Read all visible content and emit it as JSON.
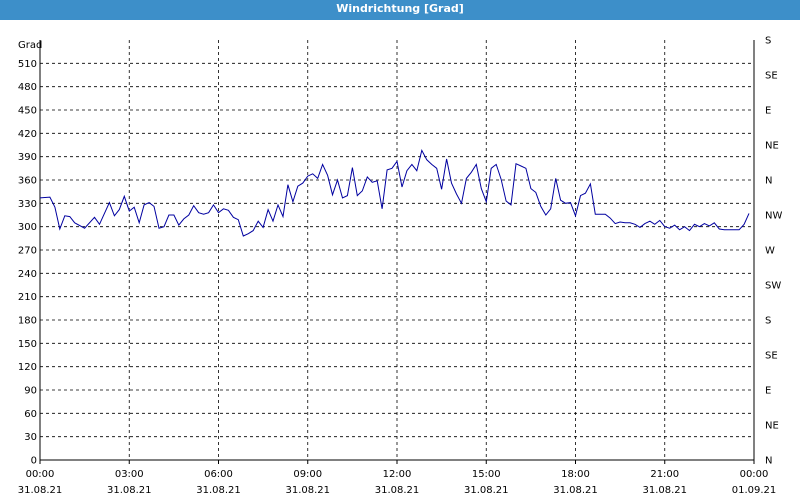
{
  "window": {
    "title": "Windrichtung [Grad]"
  },
  "chart_data": {
    "type": "line",
    "ylabel": "Grad",
    "ylim": [
      0,
      540
    ],
    "xlim": [
      "2021-08-31 00:00",
      "2021-09-01 00:00"
    ],
    "grid": true,
    "left_ticks": [
      "0",
      "30",
      "60",
      "90",
      "120",
      "150",
      "180",
      "210",
      "240",
      "270",
      "300",
      "330",
      "360",
      "390",
      "420",
      "450",
      "480",
      "510"
    ],
    "right_ticks": [
      "N",
      "NE",
      "E",
      "SE",
      "S",
      "SW",
      "W",
      "NW",
      "N",
      "NE",
      "E",
      "SE",
      "S"
    ],
    "x_ticks": [
      {
        "time": "00:00",
        "date": "31.08.21"
      },
      {
        "time": "03:00",
        "date": "31.08.21"
      },
      {
        "time": "06:00",
        "date": "31.08.21"
      },
      {
        "time": "09:00",
        "date": "31.08.21"
      },
      {
        "time": "12:00",
        "date": "31.08.21"
      },
      {
        "time": "15:00",
        "date": "31.08.21"
      },
      {
        "time": "18:00",
        "date": "31.08.21"
      },
      {
        "time": "21:00",
        "date": "31.08.21"
      },
      {
        "time": "00:00",
        "date": "01.09.21"
      }
    ],
    "series": [
      {
        "color": "#0000a0",
        "points": [
          [
            "00:00",
            337
          ],
          [
            "00:20",
            338
          ],
          [
            "00:30",
            325
          ],
          [
            "00:40",
            297
          ],
          [
            "00:50",
            314
          ],
          [
            "01:00",
            313
          ],
          [
            "01:10",
            305
          ],
          [
            "01:30",
            298
          ],
          [
            "01:50",
            312
          ],
          [
            "02:00",
            303
          ],
          [
            "02:20",
            331
          ],
          [
            "02:30",
            314
          ],
          [
            "02:40",
            322
          ],
          [
            "02:50",
            339
          ],
          [
            "03:00",
            320
          ],
          [
            "03:10",
            325
          ],
          [
            "03:20",
            305
          ],
          [
            "03:30",
            328
          ],
          [
            "03:40",
            331
          ],
          [
            "03:50",
            326
          ],
          [
            "04:00",
            298
          ],
          [
            "04:10",
            300
          ],
          [
            "04:20",
            315
          ],
          [
            "04:30",
            315
          ],
          [
            "04:40",
            302
          ],
          [
            "04:50",
            310
          ],
          [
            "05:00",
            315
          ],
          [
            "05:10",
            327
          ],
          [
            "05:20",
            318
          ],
          [
            "05:30",
            316
          ],
          [
            "05:40",
            318
          ],
          [
            "05:50",
            328
          ],
          [
            "06:00",
            318
          ],
          [
            "06:10",
            323
          ],
          [
            "06:20",
            321
          ],
          [
            "06:30",
            312
          ],
          [
            "06:40",
            309
          ],
          [
            "06:50",
            288
          ],
          [
            "07:00",
            291
          ],
          [
            "07:10",
            295
          ],
          [
            "07:20",
            307
          ],
          [
            "07:30",
            299
          ],
          [
            "07:40",
            322
          ],
          [
            "07:50",
            307
          ],
          [
            "08:00",
            328
          ],
          [
            "08:10",
            313
          ],
          [
            "08:20",
            354
          ],
          [
            "08:30",
            332
          ],
          [
            "08:40",
            352
          ],
          [
            "08:50",
            356
          ],
          [
            "09:00",
            365
          ],
          [
            "09:10",
            368
          ],
          [
            "09:20",
            362
          ],
          [
            "09:30",
            380
          ],
          [
            "09:40",
            366
          ],
          [
            "09:50",
            341
          ],
          [
            "10:00",
            360
          ],
          [
            "10:10",
            337
          ],
          [
            "10:20",
            340
          ],
          [
            "10:30",
            376
          ],
          [
            "10:40",
            340
          ],
          [
            "10:50",
            346
          ],
          [
            "11:00",
            364
          ],
          [
            "11:10",
            357
          ],
          [
            "11:20",
            359
          ],
          [
            "11:30",
            323
          ],
          [
            "11:40",
            373
          ],
          [
            "11:50",
            375
          ],
          [
            "12:00",
            384
          ],
          [
            "12:10",
            351
          ],
          [
            "12:20",
            372
          ],
          [
            "12:30",
            380
          ],
          [
            "12:40",
            372
          ],
          [
            "12:50",
            398
          ],
          [
            "13:00",
            386
          ],
          [
            "13:10",
            380
          ],
          [
            "13:20",
            375
          ],
          [
            "13:30",
            348
          ],
          [
            "13:40",
            387
          ],
          [
            "13:50",
            356
          ],
          [
            "14:00",
            342
          ],
          [
            "14:10",
            330
          ],
          [
            "14:20",
            362
          ],
          [
            "14:30",
            370
          ],
          [
            "14:40",
            380
          ],
          [
            "14:50",
            349
          ],
          [
            "15:00",
            332
          ],
          [
            "15:10",
            375
          ],
          [
            "15:20",
            380
          ],
          [
            "15:30",
            361
          ],
          [
            "15:40",
            333
          ],
          [
            "15:50",
            328
          ],
          [
            "16:00",
            381
          ],
          [
            "16:10",
            378
          ],
          [
            "16:20",
            375
          ],
          [
            "16:30",
            349
          ],
          [
            "16:40",
            344
          ],
          [
            "16:50",
            326
          ],
          [
            "17:00",
            315
          ],
          [
            "17:10",
            323
          ],
          [
            "17:20",
            362
          ],
          [
            "17:30",
            334
          ],
          [
            "17:40",
            330
          ],
          [
            "17:50",
            331
          ],
          [
            "18:00",
            314
          ],
          [
            "18:10",
            340
          ],
          [
            "18:20",
            343
          ],
          [
            "18:30",
            355
          ],
          [
            "18:40",
            316
          ],
          [
            "18:50",
            316
          ],
          [
            "19:00",
            316
          ],
          [
            "19:10",
            311
          ],
          [
            "19:20",
            304
          ],
          [
            "19:30",
            306
          ],
          [
            "19:40",
            305
          ],
          [
            "19:50",
            305
          ],
          [
            "20:00",
            303
          ],
          [
            "20:10",
            299
          ],
          [
            "20:20",
            304
          ],
          [
            "20:30",
            307
          ],
          [
            "20:40",
            303
          ],
          [
            "20:50",
            308
          ],
          [
            "21:00",
            300
          ],
          [
            "21:10",
            298
          ],
          [
            "21:20",
            302
          ],
          [
            "21:30",
            296
          ],
          [
            "21:40",
            300
          ],
          [
            "21:50",
            295
          ],
          [
            "22:00",
            303
          ],
          [
            "22:10",
            300
          ],
          [
            "22:20",
            304
          ],
          [
            "22:30",
            301
          ],
          [
            "22:40",
            305
          ],
          [
            "22:50",
            297
          ],
          [
            "23:00",
            296
          ],
          [
            "23:10",
            296
          ],
          [
            "23:20",
            296
          ],
          [
            "23:30",
            296
          ],
          [
            "23:40",
            303
          ],
          [
            "23:50",
            317
          ]
        ]
      }
    ]
  }
}
